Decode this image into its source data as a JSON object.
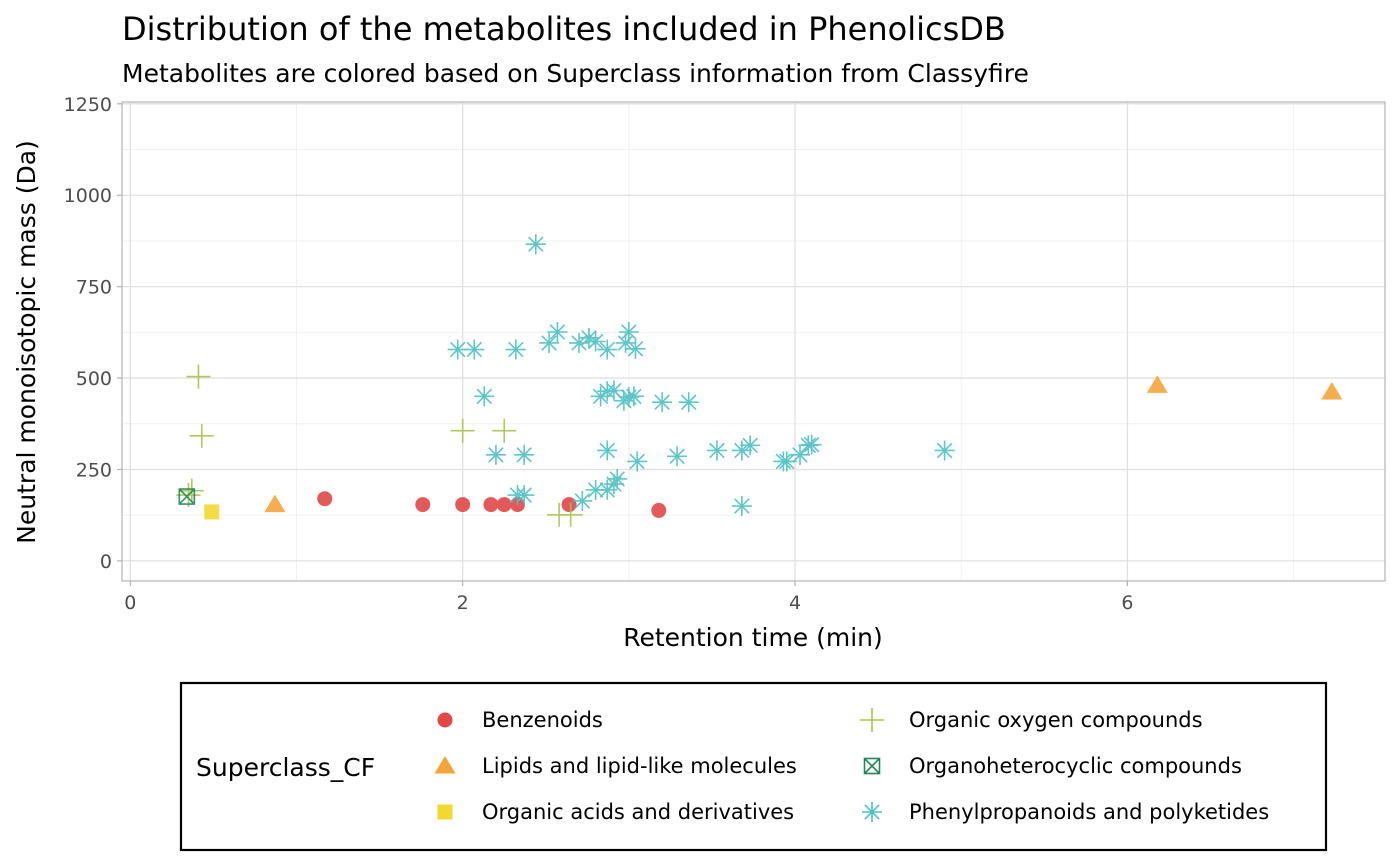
{
  "chart_data": {
    "type": "scatter",
    "title": "Distribution of the metabolites included in PhenolicsDB",
    "subtitle": "Metabolites are colored based on Superclass information from Classyfire",
    "xlabel": "Retention time (min)",
    "ylabel": "Neutral monoisotopic mass (Da)",
    "xlim": [
      -0.05,
      7.55
    ],
    "ylim": [
      -55,
      1255
    ],
    "x_ticks": [
      0,
      2,
      4,
      6
    ],
    "y_ticks": [
      0,
      250,
      500,
      750,
      1000,
      1250
    ],
    "x_tick_labels": [
      "0",
      "2",
      "4",
      "6"
    ],
    "y_tick_labels": [
      "0",
      "250",
      "500",
      "750",
      "1000",
      "1250"
    ],
    "grid": true,
    "legend": {
      "title": "Superclass_CF",
      "position": "bottom"
    },
    "series": [
      {
        "name": "Benzenoids",
        "color": "#e04848",
        "marker": "circle",
        "points": [
          [
            1.17,
            170
          ],
          [
            1.76,
            154
          ],
          [
            2.0,
            154
          ],
          [
            2.17,
            154
          ],
          [
            2.25,
            154
          ],
          [
            2.33,
            154
          ],
          [
            2.64,
            154
          ],
          [
            3.18,
            138
          ]
        ]
      },
      {
        "name": "Lipids and lipid-like molecules",
        "color": "#f4a43a",
        "marker": "triangle",
        "points": [
          [
            0.87,
            154
          ],
          [
            6.18,
            480
          ],
          [
            7.23,
            462
          ]
        ]
      },
      {
        "name": "Organic acids and derivatives",
        "color": "#f2d930",
        "marker": "square",
        "points": [
          [
            0.49,
            134
          ]
        ]
      },
      {
        "name": "Organic oxygen compounds",
        "color": "#a8c34a",
        "marker": "plus",
        "points": [
          [
            0.35,
            180
          ],
          [
            0.37,
            192
          ],
          [
            0.41,
            504
          ],
          [
            0.43,
            342
          ],
          [
            2.0,
            356
          ],
          [
            2.25,
            356
          ],
          [
            2.58,
            126
          ],
          [
            2.65,
            126
          ]
        ]
      },
      {
        "name": "Organoheterocyclic compounds",
        "color": "#23835a",
        "marker": "boxcross",
        "points": [
          [
            0.34,
            176
          ]
        ]
      },
      {
        "name": "Phenylpropanoids and polyketides",
        "color": "#4dbfc4",
        "marker": "asterisk",
        "points": [
          [
            2.44,
            866
          ],
          [
            1.97,
            578
          ],
          [
            2.07,
            578
          ],
          [
            2.32,
            578
          ],
          [
            2.52,
            596
          ],
          [
            2.57,
            626
          ],
          [
            2.7,
            596
          ],
          [
            2.76,
            610
          ],
          [
            2.8,
            600
          ],
          [
            2.87,
            578
          ],
          [
            2.98,
            596
          ],
          [
            3.0,
            626
          ],
          [
            3.04,
            580
          ],
          [
            2.13,
            450
          ],
          [
            2.83,
            450
          ],
          [
            2.87,
            464
          ],
          [
            2.91,
            466
          ],
          [
            2.97,
            438
          ],
          [
            3.0,
            448
          ],
          [
            3.03,
            450
          ],
          [
            3.2,
            434
          ],
          [
            3.36,
            434
          ],
          [
            2.2,
            290
          ],
          [
            2.37,
            290
          ],
          [
            2.87,
            302
          ],
          [
            3.05,
            272
          ],
          [
            3.29,
            286
          ],
          [
            3.53,
            302
          ],
          [
            3.68,
            302
          ],
          [
            3.73,
            316
          ],
          [
            3.93,
            272
          ],
          [
            3.95,
            272
          ],
          [
            4.03,
            290
          ],
          [
            4.08,
            316
          ],
          [
            4.1,
            318
          ],
          [
            4.9,
            302
          ],
          [
            2.33,
            180
          ],
          [
            2.37,
            180
          ],
          [
            2.72,
            164
          ],
          [
            2.8,
            194
          ],
          [
            2.87,
            194
          ],
          [
            2.91,
            210
          ],
          [
            2.93,
            224
          ],
          [
            3.68,
            150
          ]
        ]
      }
    ]
  }
}
